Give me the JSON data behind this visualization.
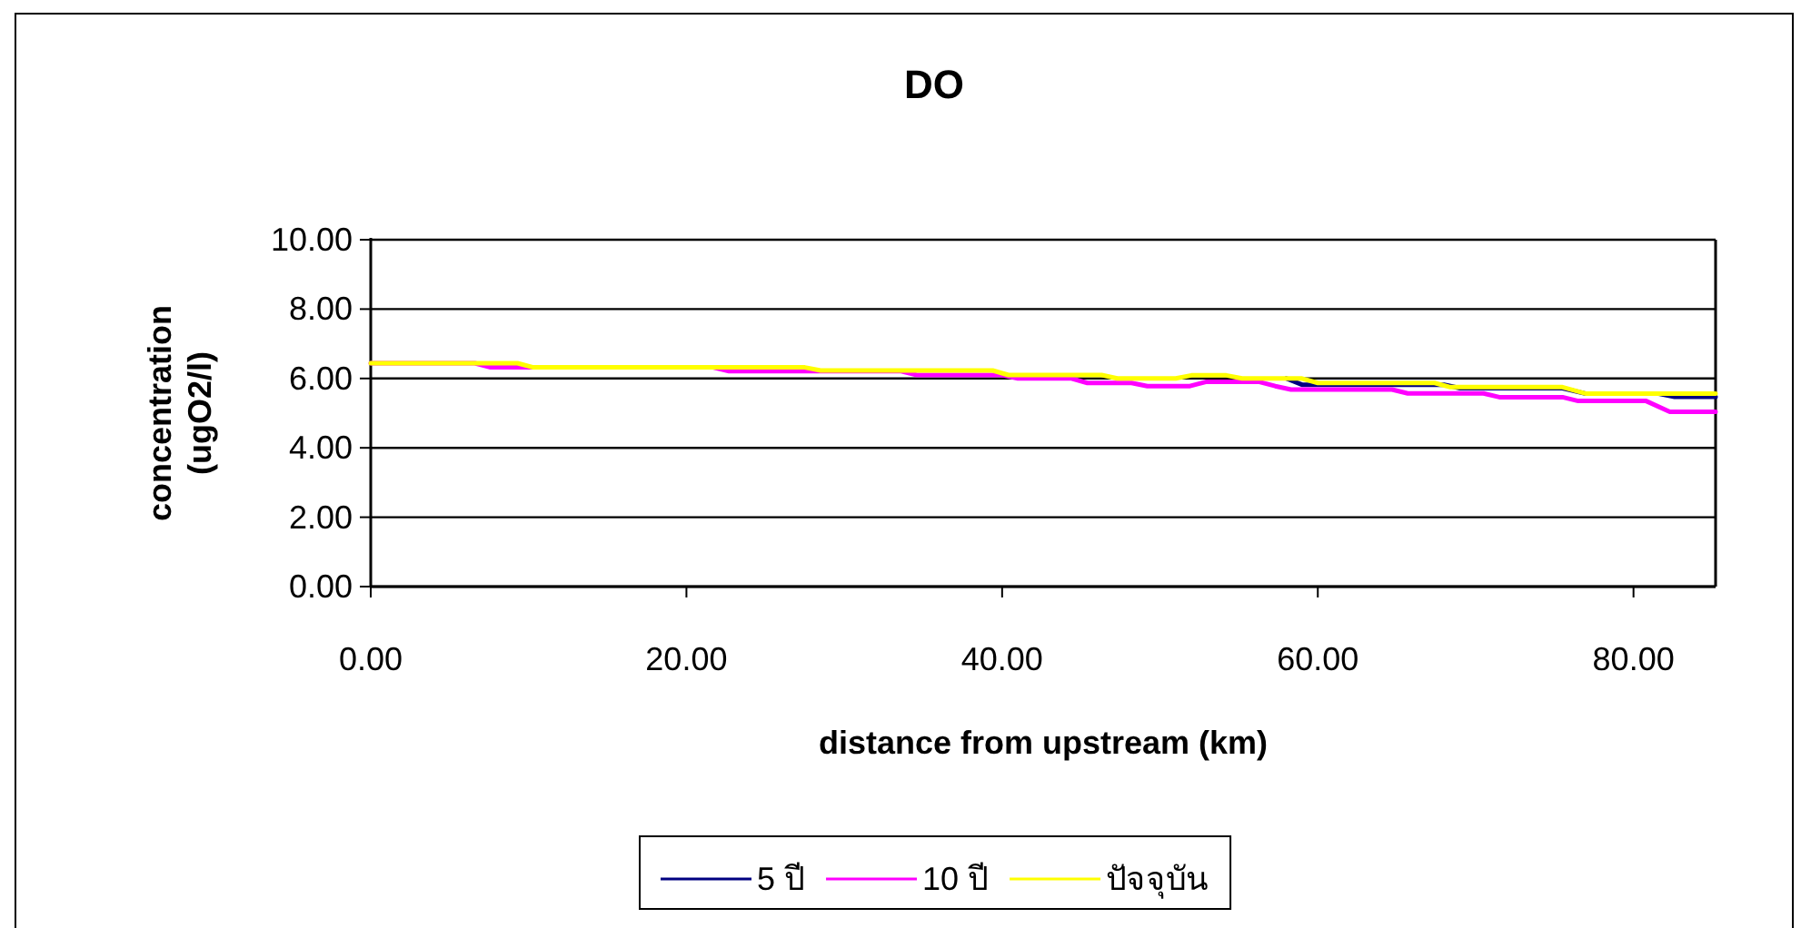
{
  "chart_data": {
    "type": "line",
    "title": "DO",
    "xlabel": "distance from upstream (km)",
    "ylabel": "concentration\n(ugO2/l)",
    "xlim": [
      0,
      85.2
    ],
    "xticks": [
      {
        "value": 0,
        "label": "0.00"
      },
      {
        "value": 20,
        "label": "20.00"
      },
      {
        "value": 40,
        "label": "40.00"
      },
      {
        "value": 60,
        "label": "60.00"
      },
      {
        "value": 80,
        "label": "80.00"
      }
    ],
    "ylim": [
      0,
      10
    ],
    "yticks": [
      {
        "value": 0,
        "label": "0.00"
      },
      {
        "value": 2,
        "label": "2.00"
      },
      {
        "value": 4,
        "label": "4.00"
      },
      {
        "value": 6,
        "label": "6.00"
      },
      {
        "value": 8,
        "label": "8.00"
      },
      {
        "value": 10,
        "label": "10.00"
      }
    ],
    "grid": "y",
    "legend": "bottom",
    "marker": "none",
    "line_style": "solid",
    "series": [
      {
        "name": "5 ปี",
        "color": "#000080",
        "x": [
          58,
          59,
          68,
          69,
          75.5,
          77,
          81.6,
          82.6,
          85.2
        ],
        "values": [
          6.0,
          5.82,
          5.82,
          5.72,
          5.72,
          5.56,
          5.56,
          5.47,
          5.47
        ]
      },
      {
        "name": "10 ปี",
        "color": "#ff00ff",
        "x": [
          0,
          6.6,
          7.6,
          21.7,
          22.7,
          33.6,
          34.6,
          40,
          41,
          44.4,
          45.4,
          48.2,
          49.2,
          51.9,
          52.9,
          56.3,
          57.3,
          58.3,
          64.7,
          65.7,
          70.5,
          71.5,
          75.5,
          76.5,
          80.8,
          82.3,
          85.2
        ],
        "values": [
          6.44,
          6.44,
          6.32,
          6.32,
          6.21,
          6.21,
          6.1,
          6.1,
          6.0,
          6.0,
          5.87,
          5.87,
          5.78,
          5.78,
          5.9,
          5.9,
          5.78,
          5.68,
          5.68,
          5.57,
          5.57,
          5.46,
          5.46,
          5.35,
          5.35,
          5.04,
          5.04
        ]
      },
      {
        "name": "ปัจจุบัน",
        "color": "#ffff00",
        "x": [
          0,
          9.3,
          10.3,
          27.5,
          28.5,
          39.4,
          40.4,
          46.3,
          47.3,
          51,
          52,
          54.2,
          55.2,
          59,
          60,
          67.4,
          68.4,
          75.5,
          77,
          85.2
        ],
        "values": [
          6.44,
          6.44,
          6.32,
          6.32,
          6.23,
          6.23,
          6.1,
          6.1,
          6.0,
          6.0,
          6.09,
          6.09,
          6.0,
          6.0,
          5.87,
          5.87,
          5.75,
          5.75,
          5.56,
          5.56
        ]
      }
    ]
  }
}
